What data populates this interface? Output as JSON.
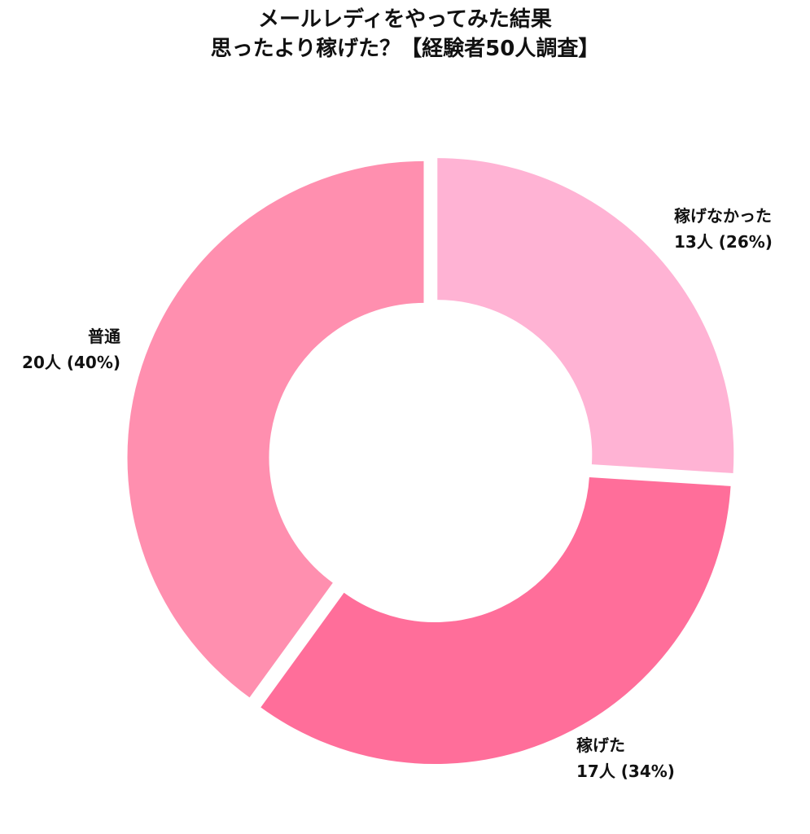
{
  "chart_data": {
    "type": "pie",
    "variant": "donut",
    "title_lines": [
      "メールレディをやってみた結果",
      "思ったより稼げた？【経験者50人調査】"
    ],
    "unit": "人",
    "slices": [
      {
        "label": "稼げなかった",
        "value": 13,
        "percent": 26,
        "value_text": "13人 (26%)",
        "color": "#FFB3D4"
      },
      {
        "label": "稼げた",
        "value": 17,
        "percent": 34,
        "value_text": "17人 (34%)",
        "color": "#FF6E9A"
      },
      {
        "label": "普通",
        "value": 20,
        "percent": 40,
        "value_text": "20人 (40%)",
        "color": "#FF8FAF"
      }
    ],
    "total": 50,
    "start_angle": "12 o'clock",
    "direction": "clockwise",
    "legend": "none",
    "grid": false
  }
}
